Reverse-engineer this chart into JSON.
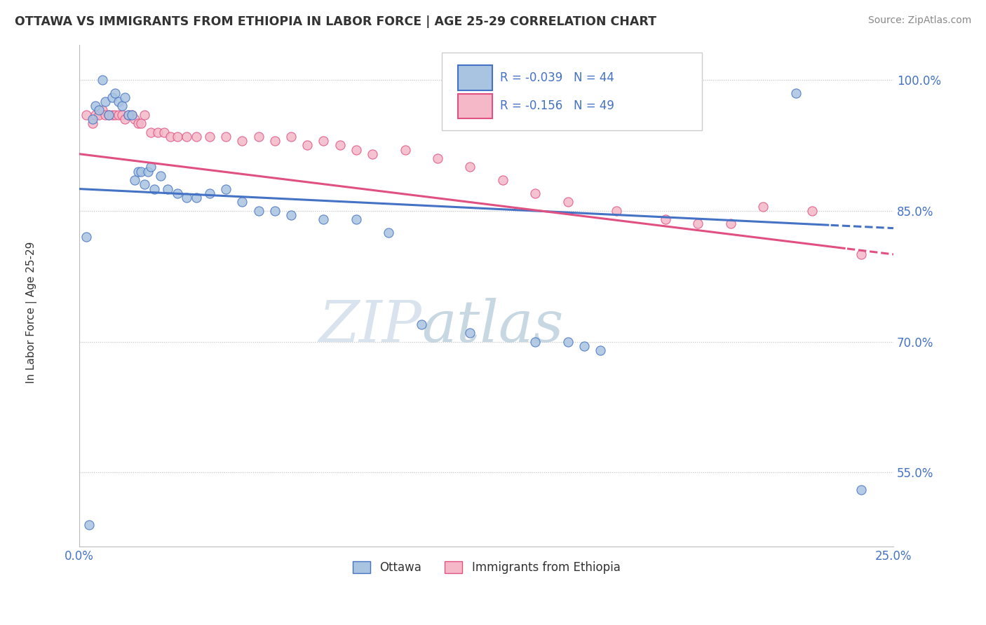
{
  "title": "OTTAWA VS IMMIGRANTS FROM ETHIOPIA IN LABOR FORCE | AGE 25-29 CORRELATION CHART",
  "source": "Source: ZipAtlas.com",
  "ylabel": "In Labor Force | Age 25-29",
  "xlim": [
    0.0,
    0.25
  ],
  "ylim": [
    0.465,
    1.04
  ],
  "xtick_labels": [
    "0.0%",
    "",
    "",
    "",
    "",
    "",
    "",
    "",
    "",
    "",
    "25.0%"
  ],
  "xtick_vals": [
    0.0,
    0.025,
    0.05,
    0.075,
    0.1,
    0.125,
    0.15,
    0.175,
    0.2,
    0.225,
    0.25
  ],
  "ytick_labels": [
    "55.0%",
    "70.0%",
    "85.0%",
    "100.0%"
  ],
  "ytick_vals": [
    0.55,
    0.7,
    0.85,
    1.0
  ],
  "r_blue": -0.039,
  "n_blue": 44,
  "r_pink": -0.156,
  "n_pink": 49,
  "watermark_zip": "ZIP",
  "watermark_atlas": "atlas",
  "blue_scatter_x": [
    0.002,
    0.003,
    0.004,
    0.005,
    0.006,
    0.007,
    0.008,
    0.009,
    0.01,
    0.011,
    0.012,
    0.013,
    0.014,
    0.015,
    0.016,
    0.017,
    0.018,
    0.019,
    0.02,
    0.021,
    0.022,
    0.023,
    0.025,
    0.027,
    0.03,
    0.033,
    0.036,
    0.04,
    0.045,
    0.05,
    0.055,
    0.06,
    0.065,
    0.075,
    0.085,
    0.095,
    0.105,
    0.12,
    0.14,
    0.15,
    0.155,
    0.16,
    0.22,
    0.24
  ],
  "blue_scatter_y": [
    0.82,
    0.49,
    0.955,
    0.97,
    0.965,
    1.0,
    0.975,
    0.96,
    0.98,
    0.985,
    0.975,
    0.97,
    0.98,
    0.96,
    0.96,
    0.885,
    0.895,
    0.895,
    0.88,
    0.895,
    0.9,
    0.875,
    0.89,
    0.875,
    0.87,
    0.865,
    0.865,
    0.87,
    0.875,
    0.86,
    0.85,
    0.85,
    0.845,
    0.84,
    0.84,
    0.825,
    0.72,
    0.71,
    0.7,
    0.7,
    0.695,
    0.69,
    0.985,
    0.53
  ],
  "pink_scatter_x": [
    0.002,
    0.004,
    0.005,
    0.006,
    0.007,
    0.008,
    0.009,
    0.01,
    0.011,
    0.012,
    0.013,
    0.014,
    0.015,
    0.016,
    0.017,
    0.018,
    0.019,
    0.02,
    0.022,
    0.024,
    0.026,
    0.028,
    0.03,
    0.033,
    0.036,
    0.04,
    0.045,
    0.05,
    0.055,
    0.06,
    0.065,
    0.07,
    0.075,
    0.08,
    0.085,
    0.09,
    0.1,
    0.11,
    0.12,
    0.13,
    0.14,
    0.15,
    0.165,
    0.18,
    0.19,
    0.2,
    0.21,
    0.225,
    0.24
  ],
  "pink_scatter_y": [
    0.96,
    0.95,
    0.96,
    0.96,
    0.965,
    0.96,
    0.96,
    0.96,
    0.96,
    0.96,
    0.96,
    0.955,
    0.96,
    0.96,
    0.955,
    0.95,
    0.95,
    0.96,
    0.94,
    0.94,
    0.94,
    0.935,
    0.935,
    0.935,
    0.935,
    0.935,
    0.935,
    0.93,
    0.935,
    0.93,
    0.935,
    0.925,
    0.93,
    0.925,
    0.92,
    0.915,
    0.92,
    0.91,
    0.9,
    0.885,
    0.87,
    0.86,
    0.85,
    0.84,
    0.835,
    0.835,
    0.855,
    0.85,
    0.8
  ],
  "blue_line_color": "#4472c4",
  "pink_line_color": "#e05080",
  "blue_dot_color": "#a8c4e0",
  "pink_dot_color": "#f4b8c8",
  "grid_color": "#cccccc",
  "title_color": "#333333",
  "axis_label_color": "#4472c4",
  "source_color": "#888888",
  "watermark_color_zip": "#c8d8e8",
  "watermark_color_atlas": "#b0c8d8"
}
